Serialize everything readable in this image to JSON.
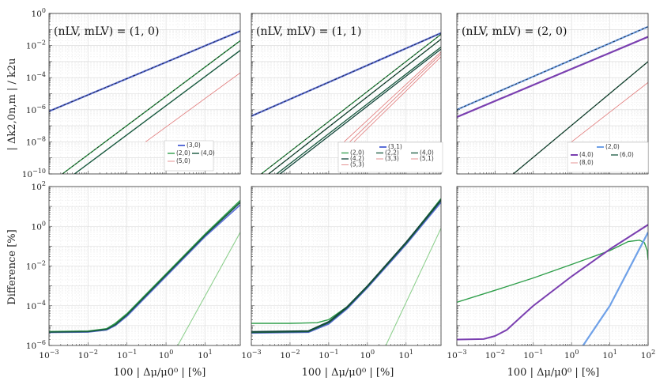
{
  "figure": {
    "ylabel_top": "| Δk2,0n,m | / k2u",
    "ylabel_bottom": "Difference [%]",
    "xlabel": "100 | Δμ/μ0⁰ | [%]"
  },
  "chart_data": [
    {
      "type": "line",
      "title": "(nLV, mLV) = (1, 0)",
      "panel": "top",
      "column": 0,
      "xscale": "log",
      "yscale": "log",
      "xlim": [
        0.001,
        80
      ],
      "ylim": [
        1e-10,
        1
      ],
      "ylabel": "| Δk2,0n,m | / k2u",
      "xlabel": "",
      "legend": {
        "position": "bottom-right",
        "entries": [
          "(3,0)",
          "(2,0)",
          "(4,0)",
          "(5,0)"
        ]
      },
      "series": [
        {
          "name": "(3,0)",
          "color": "#5b6fd8",
          "width": 2.2,
          "dashed": true,
          "points": [
            [
              0.001,
              8e-07
            ],
            [
              80,
              0.08
            ]
          ]
        },
        {
          "name": "(2,0)",
          "color": "#2e9e4a",
          "width": 1.4,
          "dashed": true,
          "points": [
            [
              0.0022,
              1e-10
            ],
            [
              80,
              0.02
            ]
          ]
        },
        {
          "name": "(4,0)",
          "color": "#17583e",
          "width": 1.4,
          "dashed": false,
          "points": [
            [
              0.0045,
              1e-10
            ],
            [
              80,
              0.005
            ]
          ]
        },
        {
          "name": "(5,0)",
          "color": "#e07878",
          "width": 0.8,
          "dashed": false,
          "points": [
            [
              0.3,
              1e-08
            ],
            [
              80,
              0.0002
            ]
          ]
        }
      ]
    },
    {
      "type": "line",
      "title": "(nLV, mLV) = (1, 1)",
      "panel": "top",
      "column": 1,
      "xscale": "log",
      "yscale": "log",
      "xlim": [
        0.001,
        80
      ],
      "ylim": [
        1e-10,
        1
      ],
      "legend": {
        "position": "bottom-right",
        "entries": [
          "(3,1)",
          "(2,0)",
          "(2,2)",
          "(4,0)",
          "(4,2)",
          "(3,3)",
          "(5,1)",
          "(5,3)"
        ]
      },
      "series": [
        {
          "name": "(3,1)",
          "color": "#5b6fd8",
          "width": 2.2,
          "dashed": true,
          "points": [
            [
              0.001,
              4e-07
            ],
            [
              80,
              0.06
            ]
          ]
        },
        {
          "name": "(2,0)",
          "color": "#2e9e4a",
          "width": 1.3,
          "dashed": true,
          "points": [
            [
              0.0018,
              1e-10
            ],
            [
              80,
              0.05
            ]
          ]
        },
        {
          "name": "(2,2)",
          "color": "#17583e",
          "width": 1.3,
          "dashed": true,
          "points": [
            [
              0.0028,
              1e-10
            ],
            [
              80,
              0.025
            ]
          ]
        },
        {
          "name": "(4,0)",
          "color": "#17583e",
          "width": 1.3,
          "dashed": false,
          "points": [
            [
              0.0045,
              1e-10
            ],
            [
              80,
              0.008
            ]
          ]
        },
        {
          "name": "(4,2)",
          "color": "#12463a",
          "width": 1.3,
          "dashed": false,
          "points": [
            [
              0.0055,
              1e-10
            ],
            [
              80,
              0.006
            ]
          ]
        },
        {
          "name": "(3,3)",
          "color": "#e07878",
          "width": 0.8,
          "dashed": false,
          "points": [
            [
              0.25,
              1e-08
            ],
            [
              80,
              0.004
            ]
          ]
        },
        {
          "name": "(5,1)",
          "color": "#e07878",
          "width": 0.8,
          "dashed": false,
          "points": [
            [
              0.35,
              1e-08
            ],
            [
              80,
              0.003
            ]
          ]
        },
        {
          "name": "(5,3)",
          "color": "#e07878",
          "width": 0.8,
          "dashed": false,
          "points": [
            [
              0.45,
              1e-08
            ],
            [
              80,
              0.002
            ]
          ]
        }
      ]
    },
    {
      "type": "line",
      "title": "(nLV, mLV) = (2, 0)",
      "panel": "top",
      "column": 2,
      "xscale": "log",
      "yscale": "log",
      "xlim": [
        0.001,
        100
      ],
      "ylim": [
        1e-10,
        1
      ],
      "legend": {
        "position": "bottom-right",
        "entries": [
          "(2,0)",
          "(4,0)",
          "(6,0)",
          "(8,0)"
        ]
      },
      "series": [
        {
          "name": "(2,0)",
          "color": "#6fa1e8",
          "width": 2.2,
          "dashed": true,
          "points": [
            [
              0.001,
              1e-06
            ],
            [
              100,
              0.15
            ]
          ]
        },
        {
          "name": "(4,0)",
          "color": "#7a3fb0",
          "width": 2.2,
          "dashed": false,
          "points": [
            [
              0.001,
              3.5e-07
            ],
            [
              100,
              0.035
            ]
          ]
        },
        {
          "name": "(6,0)",
          "color": "#17583e",
          "width": 1.3,
          "dashed": true,
          "points": [
            [
              0.03,
              1e-10
            ],
            [
              100,
              0.001
            ]
          ]
        },
        {
          "name": "(8,0)",
          "color": "#e07878",
          "width": 0.8,
          "dashed": false,
          "points": [
            [
              1,
              1e-08
            ],
            [
              100,
              5e-05
            ]
          ]
        }
      ]
    },
    {
      "type": "line",
      "title": "",
      "panel": "bottom",
      "column": 0,
      "xscale": "log",
      "yscale": "log",
      "xlim": [
        0.001,
        80
      ],
      "ylim": [
        1e-06,
        100
      ],
      "ylabel": "Difference [%]",
      "xlabel": "100 | Δμ/μ0⁰ | [%]",
      "series": [
        {
          "name": "(3,0)",
          "color": "#5b6fd8",
          "width": 1.6,
          "dashed": false,
          "points": [
            [
              0.001,
              4.5e-06
            ],
            [
              0.01,
              4.7e-06
            ],
            [
              0.03,
              6e-06
            ],
            [
              0.05,
              1e-05
            ],
            [
              0.1,
              3e-05
            ],
            [
              1,
              0.003
            ],
            [
              10,
              0.3
            ],
            [
              80,
              12
            ]
          ]
        },
        {
          "name": "(2,0)",
          "color": "#2e9e4a",
          "width": 1.6,
          "dashed": false,
          "points": [
            [
              0.001,
              5e-06
            ],
            [
              0.01,
              5.3e-06
            ],
            [
              0.03,
              7e-06
            ],
            [
              0.05,
              1.3e-05
            ],
            [
              0.1,
              4e-05
            ],
            [
              1,
              0.004
            ],
            [
              10,
              0.4
            ],
            [
              80,
              20
            ]
          ]
        },
        {
          "name": "(4,0)",
          "color": "#17583e",
          "width": 1.6,
          "dashed": false,
          "points": [
            [
              0.001,
              4.7e-06
            ],
            [
              0.01,
              5e-06
            ],
            [
              0.03,
              6.5e-06
            ],
            [
              0.05,
              1.1e-05
            ],
            [
              0.1,
              3.5e-05
            ],
            [
              1,
              0.0035
            ],
            [
              10,
              0.35
            ],
            [
              80,
              16
            ]
          ]
        },
        {
          "name": "(5,0)",
          "color": "#8fd08f",
          "width": 1.1,
          "dashed": false,
          "points": [
            [
              2,
              1e-06
            ],
            [
              80,
              0.5
            ]
          ]
        }
      ]
    },
    {
      "type": "line",
      "title": "",
      "panel": "bottom",
      "column": 1,
      "xscale": "log",
      "yscale": "log",
      "xlim": [
        0.001,
        80
      ],
      "ylim": [
        1e-06,
        100
      ],
      "xlabel": "100 | Δμ/μ0⁰ | [%]",
      "series": [
        {
          "name": "(2,0)",
          "color": "#2e9e4a",
          "width": 1.4,
          "dashed": false,
          "points": [
            [
              0.001,
              1.3e-05
            ],
            [
              0.01,
              1.3e-05
            ],
            [
              0.05,
              1.4e-05
            ],
            [
              0.1,
              2e-05
            ],
            [
              0.3,
              9e-05
            ],
            [
              1,
              0.001
            ],
            [
              10,
              0.15
            ],
            [
              80,
              25
            ]
          ]
        },
        {
          "name": "(3,1)",
          "color": "#5b6fd8",
          "width": 1.6,
          "dashed": false,
          "points": [
            [
              0.001,
              4.2e-06
            ],
            [
              0.03,
              4.6e-06
            ],
            [
              0.1,
              1.2e-05
            ],
            [
              0.3,
              7e-05
            ],
            [
              1,
              0.0008
            ],
            [
              10,
              0.12
            ],
            [
              80,
              16
            ]
          ]
        },
        {
          "name": "(2,2)",
          "color": "#17583e",
          "width": 1.6,
          "dashed": false,
          "points": [
            [
              0.001,
              4.5e-06
            ],
            [
              0.03,
              5e-06
            ],
            [
              0.1,
              1.4e-05
            ],
            [
              0.3,
              8e-05
            ],
            [
              1,
              0.0009
            ],
            [
              10,
              0.14
            ],
            [
              80,
              20
            ]
          ]
        },
        {
          "name": "(4,0)",
          "color": "#12463a",
          "width": 1.4,
          "dashed": false,
          "points": [
            [
              0.001,
              5e-06
            ],
            [
              0.03,
              5.5e-06
            ],
            [
              0.1,
              1.6e-05
            ],
            [
              0.3,
              9e-05
            ],
            [
              1,
              0.001
            ],
            [
              10,
              0.16
            ],
            [
              80,
              22
            ]
          ]
        },
        {
          "name": "(5,1)",
          "color": "#8fd08f",
          "width": 1.1,
          "dashed": false,
          "points": [
            [
              3,
              1e-06
            ],
            [
              80,
              0.8
            ]
          ]
        }
      ]
    },
    {
      "type": "line",
      "title": "",
      "panel": "bottom",
      "column": 2,
      "xscale": "log",
      "yscale": "log",
      "xlim": [
        0.001,
        100
      ],
      "ylim": [
        1e-06,
        100
      ],
      "xlabel": "100 | Δμ/μ0⁰ | [%]",
      "series": [
        {
          "name": "(2,0)",
          "color": "#2e9e4a",
          "width": 1.4,
          "dashed": false,
          "points": [
            [
              0.001,
              0.00015
            ],
            [
              0.01,
              0.0006
            ],
            [
              0.1,
              0.0025
            ],
            [
              1,
              0.012
            ],
            [
              10,
              0.06
            ],
            [
              30,
              0.17
            ],
            [
              60,
              0.2
            ],
            [
              80,
              0.15
            ],
            [
              95,
              0.06
            ],
            [
              100,
              0.02
            ]
          ]
        },
        {
          "name": "(4,0)",
          "color": "#7a3fb0",
          "width": 2.0,
          "dashed": false,
          "points": [
            [
              0.001,
              2e-06
            ],
            [
              0.005,
              2.1e-06
            ],
            [
              0.01,
              3e-06
            ],
            [
              0.02,
              6e-06
            ],
            [
              0.05,
              3e-05
            ],
            [
              0.1,
              0.0001
            ],
            [
              1,
              0.003
            ],
            [
              10,
              0.07
            ],
            [
              100,
              1.2
            ]
          ]
        },
        {
          "name": "(6,0)",
          "color": "#6fa1e8",
          "width": 2.2,
          "dashed": false,
          "points": [
            [
              2,
              1e-06
            ],
            [
              10,
              0.0001
            ],
            [
              100,
              0.5
            ]
          ]
        }
      ]
    }
  ]
}
